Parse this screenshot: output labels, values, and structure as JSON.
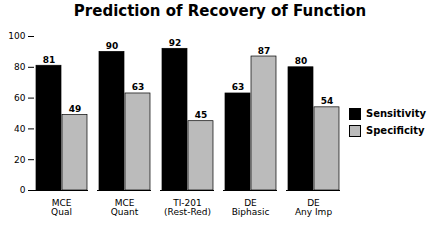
{
  "chart_data": {
    "type": "bar",
    "title": "Prediction of Recovery of Function",
    "categories": [
      "MCE\nQual",
      "MCE\nQuant",
      "TI-201\n(Rest-Red)",
      "DE\nBiphasic",
      "DE\nAny Imp"
    ],
    "series": [
      {
        "name": "Sensitivity",
        "color": "#000000",
        "values": [
          81,
          90,
          92,
          63,
          80
        ]
      },
      {
        "name": "Specificity",
        "color": "#bbbbbb",
        "values": [
          49,
          63,
          45,
          87,
          54
        ]
      }
    ],
    "ylim": [
      0,
      100
    ],
    "yticks": [
      0,
      20,
      40,
      60,
      80,
      100
    ],
    "grid": false,
    "legend": "right",
    "data_labels": true
  }
}
